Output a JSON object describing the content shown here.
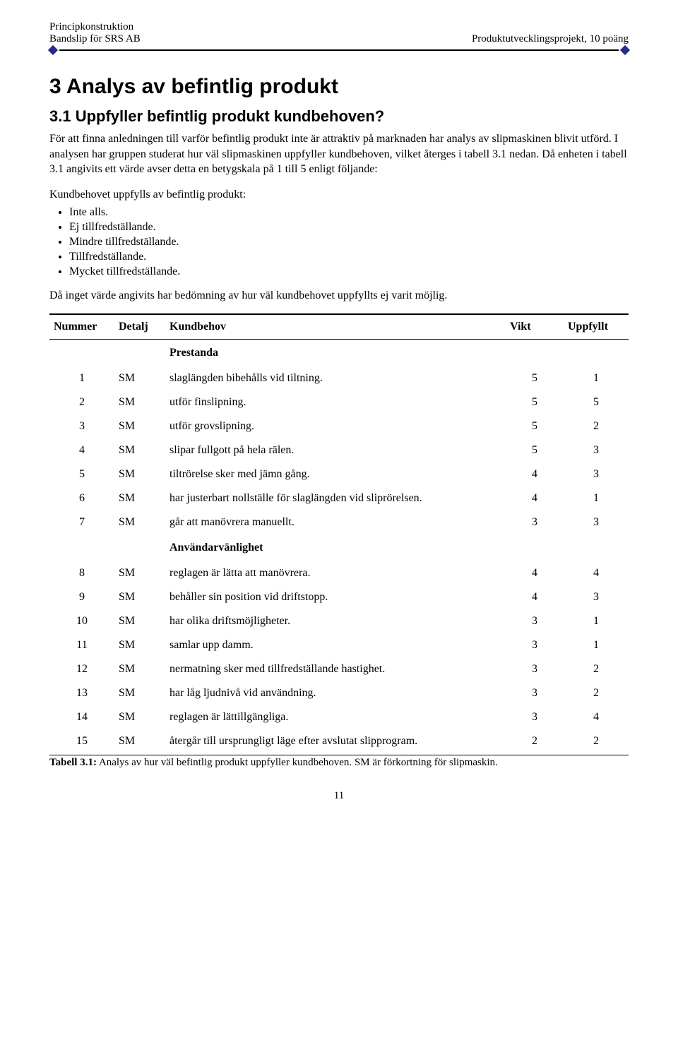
{
  "header": {
    "left_line1": "Principkonstruktion",
    "left_line2": "Bandslip för SRS AB",
    "right": "Produktutvecklingsprojekt, 10 poäng"
  },
  "titles": {
    "section": "3 Analys av befintlig produkt",
    "subsection": "3.1 Uppfyller befintlig produkt kundbehoven?"
  },
  "paragraphs": {
    "p1": "För att finna anledningen till varför befintlig produkt inte är attraktiv på marknaden har analys av slipmaskinen blivit utförd. I analysen har gruppen studerat hur väl slipmaskinen uppfyller kundbehoven, vilket återges i tabell 3.1 nedan. Då enheten i tabell 3.1 angivits ett värde avser detta en betygskala på 1 till 5 enligt följande:",
    "list_intro": "Kundbehovet uppfylls av befintlig produkt:",
    "p2": "Då inget värde angivits har bedömning av hur väl kundbehovet uppfyllts ej varit möjlig."
  },
  "bullets": [
    "Inte alls.",
    "Ej tillfredställande.",
    "Mindre tillfredställande.",
    "Tillfredställande.",
    "Mycket tillfredställande."
  ],
  "table": {
    "headers": {
      "num": "Nummer",
      "det": "Detalj",
      "kund": "Kundbehov",
      "vikt": "Vikt",
      "upf": "Uppfyllt"
    },
    "section1": "Prestanda",
    "section2": "Användarvänlighet",
    "rows": [
      {
        "n": "1",
        "d": "SM",
        "k": "slaglängden bibehålls vid tiltning.",
        "v": "5",
        "u": "1",
        "j": false
      },
      {
        "n": "2",
        "d": "SM",
        "k": "utför finslipning.",
        "v": "5",
        "u": "5",
        "j": false
      },
      {
        "n": "3",
        "d": "SM",
        "k": "utför grovslipning.",
        "v": "5",
        "u": "2",
        "j": false
      },
      {
        "n": "4",
        "d": "SM",
        "k": "slipar fullgott på hela rälen.",
        "v": "5",
        "u": "3",
        "j": false
      },
      {
        "n": "5",
        "d": "SM",
        "k": "tiltrörelse sker med jämn gång.",
        "v": "4",
        "u": "3",
        "j": false
      },
      {
        "n": "6",
        "d": "SM",
        "k": "har justerbart nollställe för slaglängden vid sliprörelsen.",
        "v": "4",
        "u": "1",
        "j": true
      },
      {
        "n": "7",
        "d": "SM",
        "k": "går att manövrera manuellt.",
        "v": "3",
        "u": "3",
        "j": false
      }
    ],
    "rows2": [
      {
        "n": "8",
        "d": "SM",
        "k": "reglagen är lätta att manövrera.",
        "v": "4",
        "u": "4",
        "j": false
      },
      {
        "n": "9",
        "d": "SM",
        "k": "behåller sin position vid driftstopp.",
        "v": "4",
        "u": "3",
        "j": false
      },
      {
        "n": "10",
        "d": "SM",
        "k": "har olika driftsmöjligheter.",
        "v": "3",
        "u": "1",
        "j": false
      },
      {
        "n": "11",
        "d": "SM",
        "k": "samlar upp damm.",
        "v": "3",
        "u": "1",
        "j": false
      },
      {
        "n": "12",
        "d": "SM",
        "k": "nermatning sker med tillfredställande hastighet.",
        "v": "3",
        "u": "2",
        "j": false
      },
      {
        "n": "13",
        "d": "SM",
        "k": "har låg ljudnivå vid användning.",
        "v": "3",
        "u": "2",
        "j": false
      },
      {
        "n": "14",
        "d": "SM",
        "k": "reglagen är lättillgängliga.",
        "v": "3",
        "u": "4",
        "j": false
      },
      {
        "n": "15",
        "d": "SM",
        "k": "återgår till ursprungligt läge efter avslutat slipprogram.",
        "v": "2",
        "u": "2",
        "j": true
      }
    ]
  },
  "caption": {
    "bold": "Tabell 3.1:",
    "text": " Analys av hur väl befintlig produkt uppfyller kundbehoven. SM är förkortning för slipmaskin."
  },
  "page_number": "11"
}
